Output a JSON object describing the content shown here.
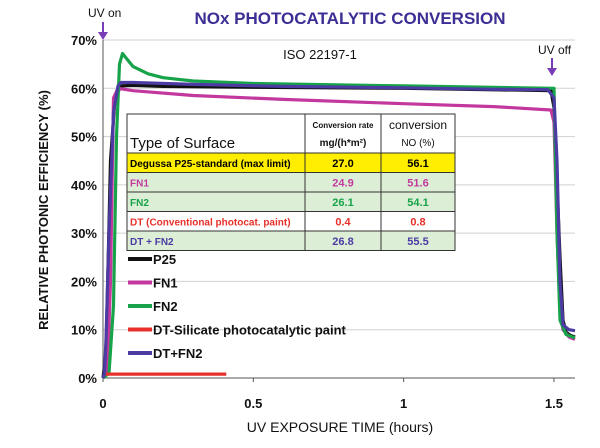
{
  "chart_data": {
    "type": "line",
    "title": "NOx PHOTOCATALYTIC CONVERSION",
    "subtitle": "ISO 22197-1",
    "xlabel": "UV EXPOSURE TIME (hours)",
    "ylabel": "RELATIVE PHOTONIC EFFICIENCY (%)",
    "xlim": [
      0,
      1.57
    ],
    "ylim": [
      0,
      70
    ],
    "x_ticks": [
      "0",
      "0.5",
      "1",
      "1.5"
    ],
    "y_ticks": [
      "0%",
      "10%",
      "20%",
      "30%",
      "40%",
      "50%",
      "60%",
      "70%"
    ],
    "x_tick_values": [
      0,
      0.5,
      1,
      1.5
    ],
    "y_tick_values": [
      0,
      10,
      20,
      30,
      40,
      50,
      60,
      70
    ],
    "grid": "horizontal",
    "legend_position": "bottom-left",
    "annotations": {
      "uv_on": {
        "text": "UV on",
        "x": 0
      },
      "uv_off": {
        "text": "UV off",
        "x": 1.5
      }
    },
    "series": [
      {
        "name": "P25",
        "color": "#111111",
        "x": [
          0.0,
          0.01,
          0.025,
          0.04,
          0.06,
          0.1,
          0.2,
          0.5,
          1.0,
          1.4,
          1.49,
          1.5,
          1.52,
          1.53,
          1.54,
          1.55,
          1.56,
          1.57
        ],
        "y": [
          0.0,
          5,
          45,
          58,
          60.5,
          60.6,
          60.4,
          60.2,
          60.0,
          59.6,
          59.5,
          56,
          25,
          12,
          9.5,
          9,
          8.7,
          8.5
        ]
      },
      {
        "name": "FN1",
        "color": "#c2389e",
        "x": [
          0.0,
          0.015,
          0.025,
          0.035,
          0.05,
          0.1,
          0.3,
          0.6,
          1.0,
          1.3,
          1.49,
          1.5,
          1.51,
          1.52,
          1.53,
          1.55,
          1.57
        ],
        "y": [
          0.0,
          2,
          20,
          58,
          60,
          59.5,
          58.5,
          57.7,
          56.8,
          56.2,
          55.5,
          53,
          30,
          14,
          10,
          8.5,
          8
        ]
      },
      {
        "name": "FN2",
        "color": "#17a34a",
        "x": [
          0.0,
          0.02,
          0.035,
          0.045,
          0.055,
          0.065,
          0.08,
          0.1,
          0.15,
          0.2,
          0.3,
          0.5,
          1.0,
          1.5,
          1.51,
          1.52,
          1.54,
          1.57
        ],
        "y": [
          0.0,
          1,
          15,
          50,
          65,
          67.2,
          66,
          64.5,
          63,
          62.2,
          61.5,
          61,
          60.5,
          60,
          30,
          12,
          9,
          8.3
        ]
      },
      {
        "name": "DT-Silicate photocatalytic paint",
        "color": "#e8302a",
        "x": [
          0.0,
          0.1,
          0.2,
          0.3,
          0.41
        ],
        "y": [
          0.8,
          0.8,
          0.8,
          0.8,
          0.8
        ]
      },
      {
        "name": "DT+FN2",
        "color": "#4b3ba3",
        "x": [
          0.0,
          0.005,
          0.01,
          0.02,
          0.035,
          0.05,
          0.06,
          0.1,
          0.3,
          0.6,
          1.0,
          1.3,
          1.48,
          1.5,
          1.51,
          1.52,
          1.53,
          1.55,
          1.57
        ],
        "y": [
          0.0,
          1,
          8,
          30,
          55,
          60.5,
          61.2,
          61.2,
          60.8,
          60.4,
          60.1,
          59.8,
          59.7,
          58,
          45,
          20,
          11,
          10,
          9.8
        ]
      }
    ],
    "inset_table": {
      "headers": [
        "Type of Surface",
        "Conversion rate",
        "conversion"
      ],
      "units": [
        "",
        "mg/(h*m²)",
        "NO (%)"
      ],
      "rows": [
        {
          "surface": "Degussa P25-standard (max limit)",
          "rate": "27.0",
          "conversion": "56.1",
          "color": "#000000",
          "bg": "#ffee00"
        },
        {
          "surface": "FN1",
          "rate": "24.9",
          "conversion": "51.6",
          "color": "#c2389e",
          "bg": "#dcefd6"
        },
        {
          "surface": "FN2",
          "rate": "26.1",
          "conversion": "54.1",
          "color": "#17a34a",
          "bg": "#dcefd6"
        },
        {
          "surface": "DT (Conventional photocat. paint)",
          "rate": "0.4",
          "conversion": "0.8",
          "color": "#e8302a",
          "bg": "#ffffff"
        },
        {
          "surface": "DT + FN2",
          "rate": "26.8",
          "conversion": "55.5",
          "color": "#4b3ba3",
          "bg": "#dcefd6"
        }
      ]
    }
  }
}
